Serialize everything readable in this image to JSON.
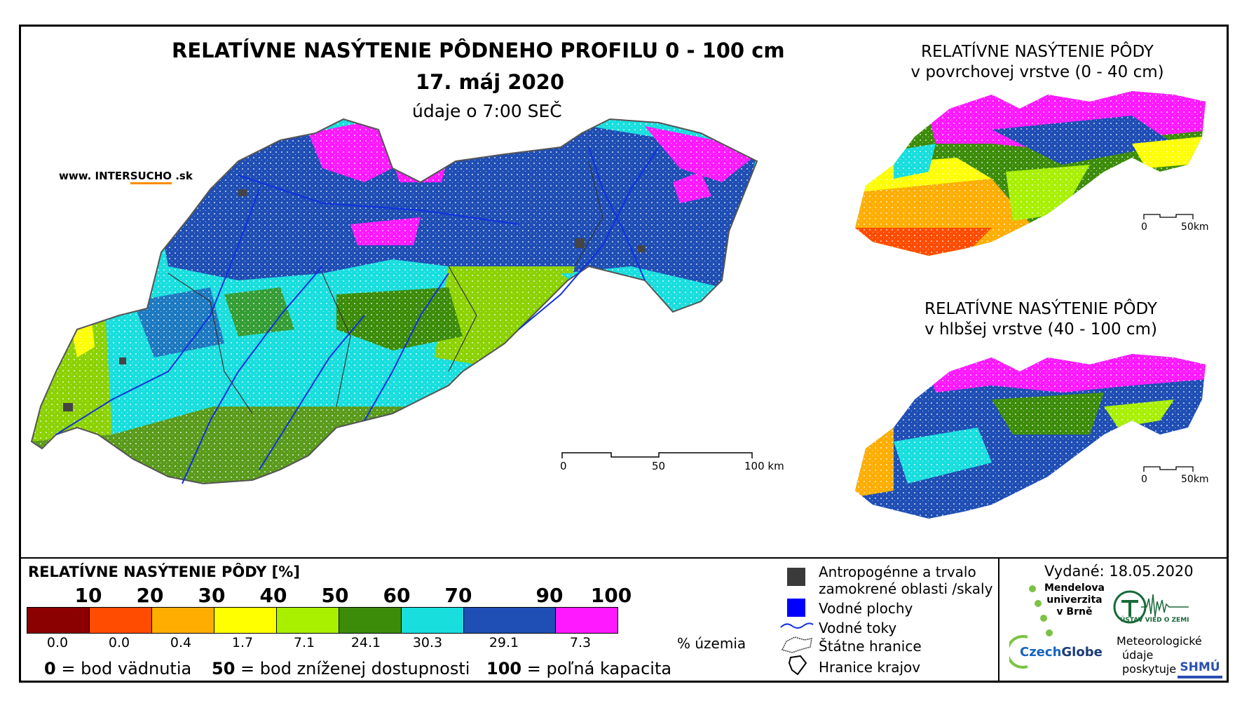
{
  "main": {
    "title": "RELATÍVNE NASÝTENIE PÔDNEHO PROFILU 0 - 100 cm",
    "date": "17. máj 2020",
    "time_note": "údaje o 7:00 SEČ",
    "website_prefix": "www. INTER",
    "website_highlight": "SUCHO",
    "website_suffix": ".sk",
    "scale": {
      "labels": [
        "0",
        "50",
        "100 km"
      ]
    }
  },
  "insets": [
    {
      "title_line1": "RELATÍVNE NASÝTENIE PÔDY",
      "title_line2": "v povrchovej vrstve (0 - 40 cm)",
      "scale_labels": [
        "0",
        "50km"
      ]
    },
    {
      "title_line1": "RELATÍVNE NASÝTENIE PÔDY",
      "title_line2": "v hlbšej vrstve (40 - 100 cm)",
      "scale_labels": [
        "0",
        "50km"
      ]
    }
  ],
  "legend": {
    "title": "RELATÍVNE NASÝTENIE PÔDY [%]",
    "thresholds": [
      "10",
      "20",
      "30",
      "40",
      "50",
      "60",
      "70",
      "90",
      "100"
    ],
    "classes": [
      {
        "color": "#8b0000",
        "pct": "0.0"
      },
      {
        "color": "#ff4c00",
        "pct": "0.0"
      },
      {
        "color": "#ffae00",
        "pct": "0.4"
      },
      {
        "color": "#ffff00",
        "pct": "1.7"
      },
      {
        "color": "#a8f000",
        "pct": "7.1"
      },
      {
        "color": "#3c8c0a",
        "pct": "24.1"
      },
      {
        "color": "#19dede",
        "pct": "30.3"
      },
      {
        "color": "#1f4eb4",
        "pct": "29.1"
      },
      {
        "color": "#ff19ff",
        "pct": "7.3"
      }
    ],
    "pct_unit": "% územia",
    "footnotes": [
      {
        "value": "0",
        "text": "= bod vädnutia"
      },
      {
        "value": "50",
        "text": "= bod zníženej dostupnosti"
      },
      {
        "value": "100",
        "text": "= poľná kapacita"
      }
    ]
  },
  "symbols": {
    "anthropogenic_line1": "Antropogénne a trvalo",
    "anthropogenic_line2": "zamokrené oblasti /skaly",
    "water_bodies": "Vodné plochy",
    "rivers": "Vodné toky",
    "state_border": "Štátne hranice",
    "region_border": "Hranice krajov"
  },
  "issued": {
    "label": "Vydané: 18.05.2020",
    "mendel_line1": "Mendelova",
    "mendel_line2": "univerzita",
    "mendel_line3": "v Brně",
    "uvz": "ÚSTAV VIED O ZEMI",
    "czech": "Czech",
    "globe": "Globe",
    "met_line1": "Meteorologické",
    "met_line2": "údaje",
    "met_line3": "poskytuje:",
    "shmu": "SHMÚ"
  }
}
